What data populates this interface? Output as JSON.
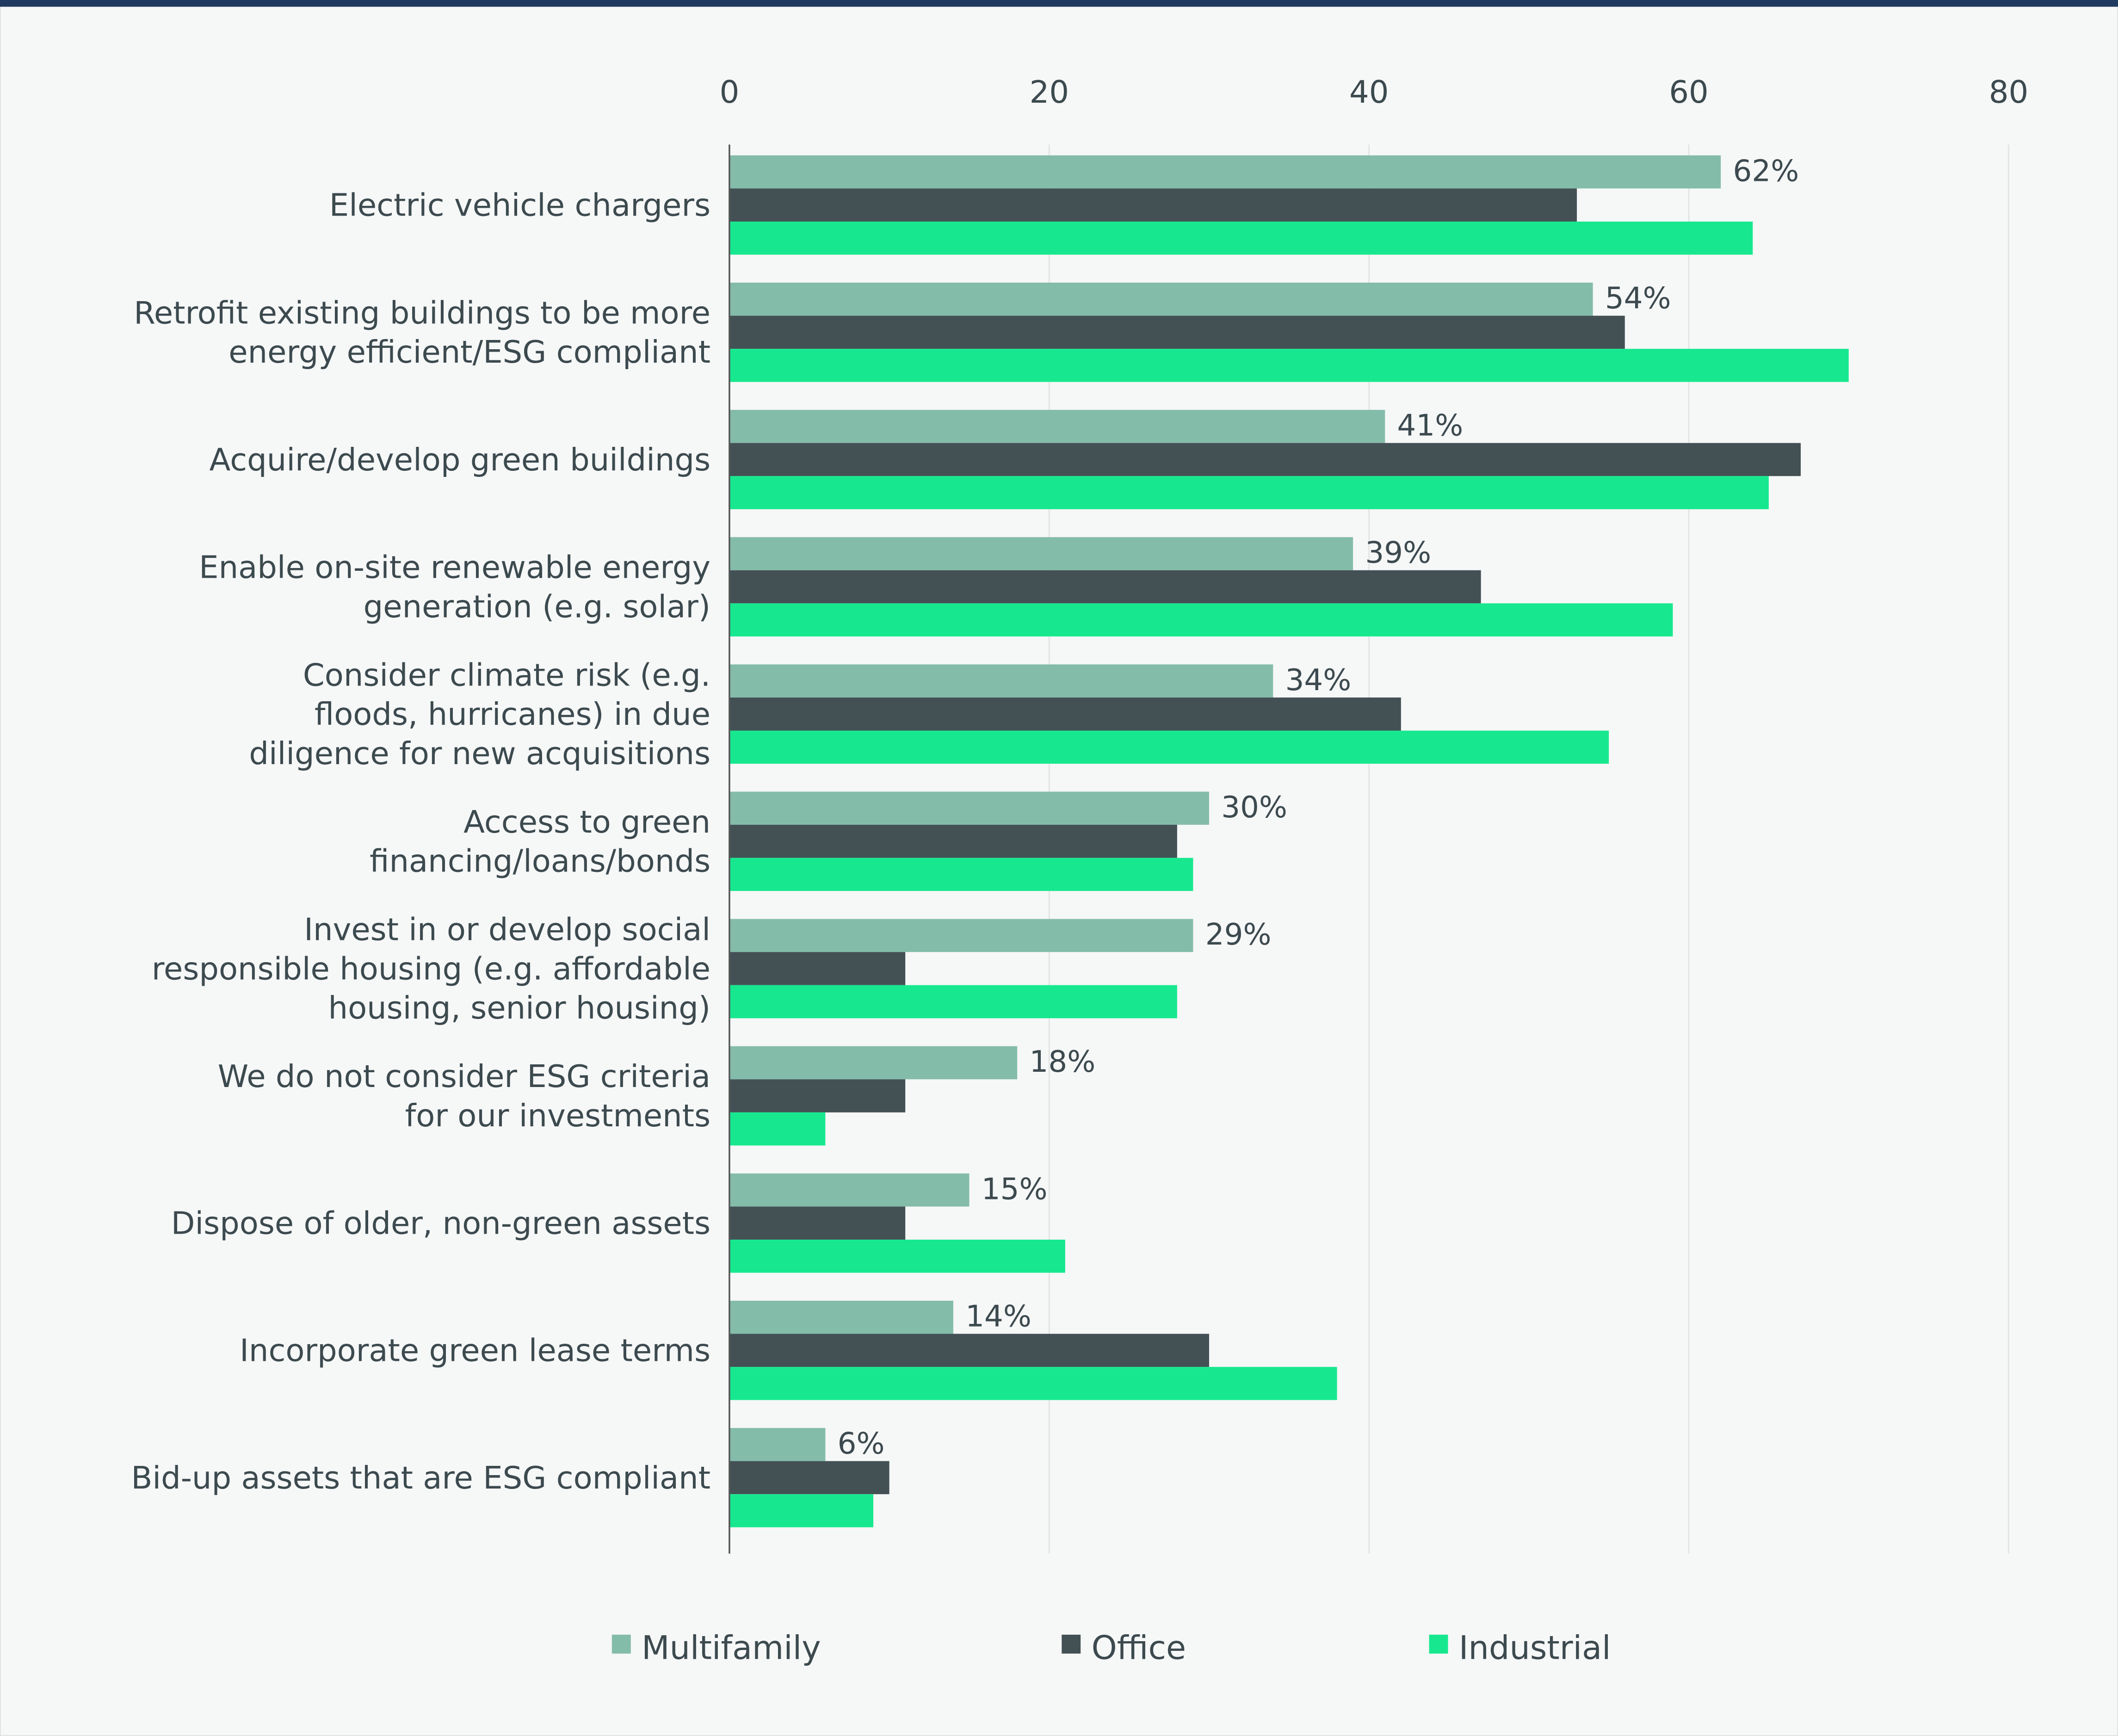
{
  "chart_data": {
    "type": "bar",
    "orientation": "horizontal",
    "categories": [
      [
        "Electric vehicle chargers"
      ],
      [
        "Retrofit existing buildings to be more",
        "energy efficient/ESG compliant"
      ],
      [
        "Acquire/develop green buildings"
      ],
      [
        "Enable on-site renewable energy",
        "generation (e.g. solar)"
      ],
      [
        "Consider climate risk (e.g.",
        "floods, hurricanes) in due",
        "diligence for new acquisitions"
      ],
      [
        "Access to green",
        "financing/loans/bonds"
      ],
      [
        "Invest in or develop social",
        "responsible housing (e.g. affordable",
        "housing, senior housing)"
      ],
      [
        "We do not consider ESG criteria",
        "for our investments"
      ],
      [
        "Dispose of older, non-green assets"
      ],
      [
        "Incorporate green lease terms"
      ],
      [
        "Bid-up assets that are ESG compliant"
      ]
    ],
    "series": [
      {
        "name": "Multifamily",
        "color": "#84bcaa",
        "values": [
          62,
          54,
          41,
          39,
          34,
          30,
          29,
          18,
          15,
          14,
          6
        ],
        "data_labels": [
          "62%",
          "54%",
          "41%",
          "39%",
          "34%",
          "30%",
          "29%",
          "18%",
          "15%",
          "14%",
          "6%"
        ]
      },
      {
        "name": "Office",
        "color": "#435155",
        "values": [
          53,
          56,
          67,
          47,
          42,
          28,
          11,
          11,
          11,
          30,
          10
        ]
      },
      {
        "name": "Industrial",
        "color": "#17e88f",
        "values": [
          64,
          70,
          65,
          59,
          55,
          29,
          28,
          6,
          21,
          38,
          9
        ]
      }
    ],
    "xlim": [
      0,
      80
    ],
    "xticks": [
      "0",
      "20",
      "40",
      "60",
      "80"
    ],
    "xaxis_position": "top",
    "grid": true,
    "legend_position": "bottom",
    "accent_border_color": "#1f3a60"
  }
}
